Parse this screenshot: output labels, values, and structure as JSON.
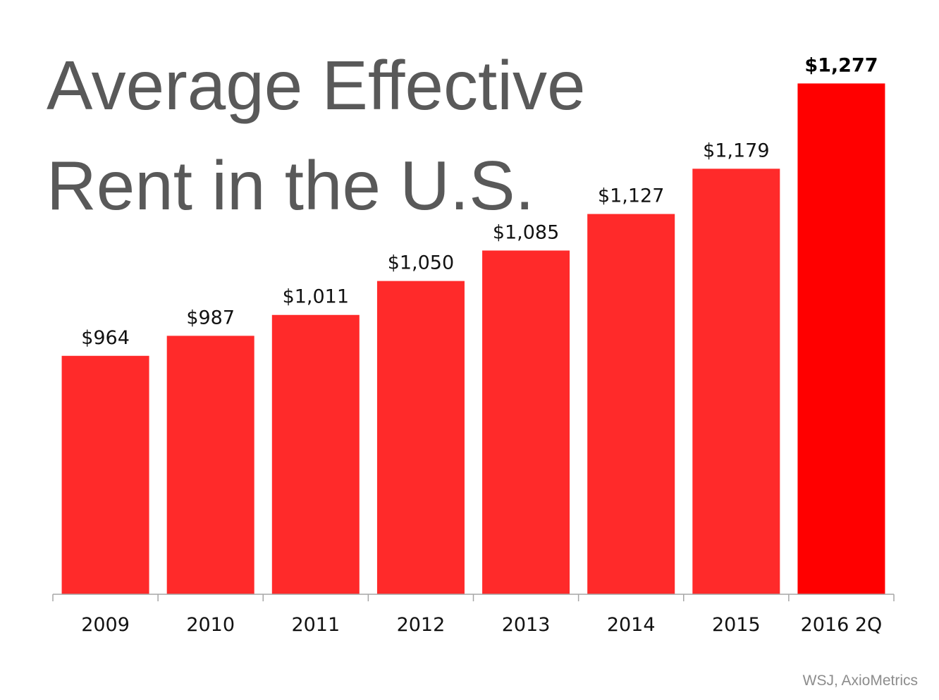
{
  "chart_data": {
    "type": "bar",
    "title_lines": [
      "Average Effective",
      "Rent in the U.S."
    ],
    "categories": [
      "2009",
      "2010",
      "2011",
      "2012",
      "2013",
      "2014",
      "2015",
      "2016 2Q"
    ],
    "values": [
      964,
      987,
      1011,
      1050,
      1085,
      1127,
      1179,
      1277
    ],
    "value_labels": [
      "$964",
      "$987",
      "$1,011",
      "$1,050",
      "$1,085",
      "$1,127",
      "$1,179",
      "$1,277"
    ],
    "highlight_index": 7,
    "ylim": [
      690,
      1300
    ],
    "grid": false,
    "legend": "none",
    "source": "WSJ, AxioMetrics",
    "colors": {
      "bar": "#ff2a2a",
      "highlight_bar": "#ff0000",
      "title": "#595959",
      "axis": "#a6a6a6",
      "source": "#8c8c8c"
    }
  }
}
